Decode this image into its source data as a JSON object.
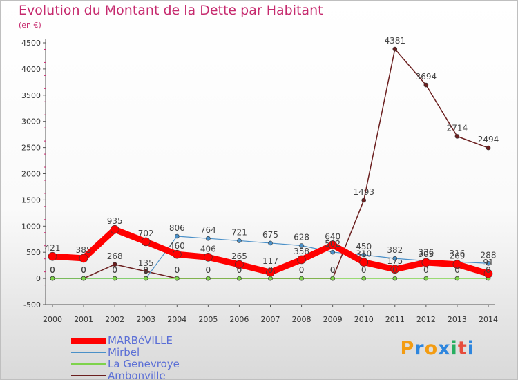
{
  "header": {
    "title": "Evolution du Montant de la Dette par Habitant",
    "subtitle": "(en €)"
  },
  "logo": {
    "text": "Proxiti",
    "colors": [
      "#f39c12",
      "#2e86de",
      "#27ae60",
      "#e74c3c"
    ]
  },
  "chart_data": {
    "type": "line",
    "title": "Evolution du Montant de la Dette par Habitant",
    "subtitle": "(en €)",
    "xlabel": "",
    "ylabel": "",
    "x": [
      "2000",
      "2001",
      "2002",
      "2003",
      "2004",
      "2005",
      "2006",
      "2007",
      "2008",
      "2009",
      "2010",
      "2011",
      "2012",
      "2013",
      "2014"
    ],
    "ylim": [
      -500,
      4500
    ],
    "yticks": [
      -500,
      0,
      500,
      1000,
      1500,
      2000,
      2500,
      3000,
      3500,
      4000,
      4500
    ],
    "grid": false,
    "legend": "bottom-left",
    "series": [
      {
        "name": "MARBéVILLE",
        "color": "#ff0000",
        "values": [
          421,
          385,
          935,
          702,
          460,
          406,
          265,
          117,
          358,
          640,
          310,
          175,
          305,
          269,
          91
        ],
        "labels": [
          "421",
          "385",
          "935",
          "702",
          "460",
          "406",
          "265",
          "117",
          "358",
          "640",
          "310",
          "175",
          "305",
          "269",
          "91"
        ]
      },
      {
        "name": "Mirbel",
        "color": "#4a90c8",
        "values": [
          0,
          0,
          0,
          0,
          806,
          764,
          721,
          675,
          628,
          502,
          450,
          382,
          336,
          316,
          288
        ],
        "labels": [
          "0",
          "0",
          "0",
          "0",
          "806",
          "764",
          "721",
          "675",
          "628",
          "502",
          "450",
          "382",
          "336",
          "316",
          "288"
        ]
      },
      {
        "name": "La Genevroye",
        "color": "#7ed34c",
        "values": [
          0,
          0,
          0,
          0,
          0,
          0,
          0,
          0,
          0,
          0,
          0,
          0,
          0,
          0,
          0
        ],
        "labels": [
          "0",
          "0",
          "0",
          "0",
          "0",
          "0",
          "0",
          "0",
          "0",
          "0",
          "0",
          "0",
          "0",
          "0",
          "0"
        ]
      },
      {
        "name": "Ambonville",
        "color": "#6b1f1f",
        "values": [
          0,
          0,
          268,
          135,
          0,
          0,
          0,
          0,
          0,
          0,
          1493,
          4381,
          3694,
          2714,
          2494
        ],
        "labels": [
          "0",
          "0",
          "268",
          "135",
          "0",
          "0",
          "0",
          "0",
          "0",
          "0",
          "1493",
          "4381",
          "3694",
          "2714",
          "2494"
        ]
      }
    ]
  }
}
